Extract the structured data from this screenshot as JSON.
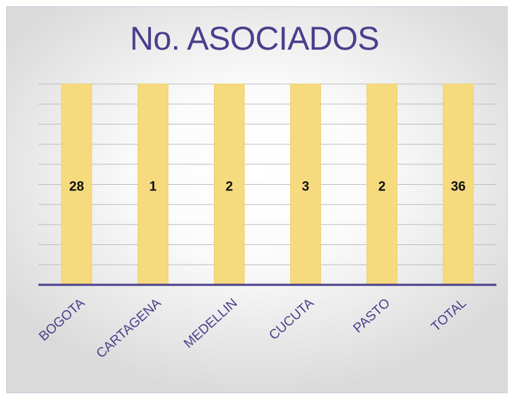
{
  "chart_data": {
    "type": "bar",
    "title": "No. ASOCIADOS",
    "categories": [
      "BOGOTA",
      "CARTAGENA",
      "MEDELLIN",
      "CUCUTA",
      "PASTO",
      "TOTAL"
    ],
    "values": [
      28,
      1,
      2,
      3,
      2,
      36
    ],
    "data_labels": [
      "28",
      "1",
      "2",
      "3",
      "2",
      "36"
    ],
    "xlabel": "",
    "ylabel": "",
    "grid": true,
    "legend": "none",
    "colors": {
      "bar": "#f6da7e",
      "bar_edge": "#efcf69",
      "title": "#4a3f8c",
      "axis": "#4a3f8c",
      "category_label": "#4a3f8c",
      "data_label": "#111111",
      "gridline": "#bdbdbd"
    }
  }
}
